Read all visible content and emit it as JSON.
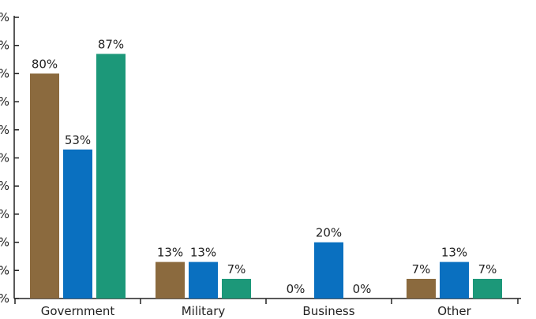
{
  "chart_data": {
    "type": "bar",
    "categories": [
      "Government",
      "Military",
      "Business",
      "Other"
    ],
    "series": [
      {
        "values": [
          80,
          13,
          0,
          7
        ],
        "labels": [
          "80%",
          "13%",
          "0%",
          "7%"
        ],
        "color": "#8b6a3e"
      },
      {
        "values": [
          53,
          13,
          20,
          13
        ],
        "labels": [
          "53%",
          "13%",
          "20%",
          "13%"
        ],
        "color": "#0a70c0"
      },
      {
        "values": [
          87,
          7,
          0,
          7
        ],
        "labels": [
          "87%",
          "7%",
          "0%",
          "7%"
        ],
        "color": "#1c9879"
      }
    ],
    "ylim": [
      0,
      100
    ],
    "yticks": [
      0,
      10,
      20,
      30,
      40,
      50,
      60,
      70,
      80,
      90,
      100
    ],
    "ytick_labels": [
      "%",
      "%",
      "%",
      "%",
      "%",
      "%",
      "%",
      "%",
      "%",
      "%",
      "%"
    ],
    "grid": false,
    "axis_color": "#222222"
  }
}
